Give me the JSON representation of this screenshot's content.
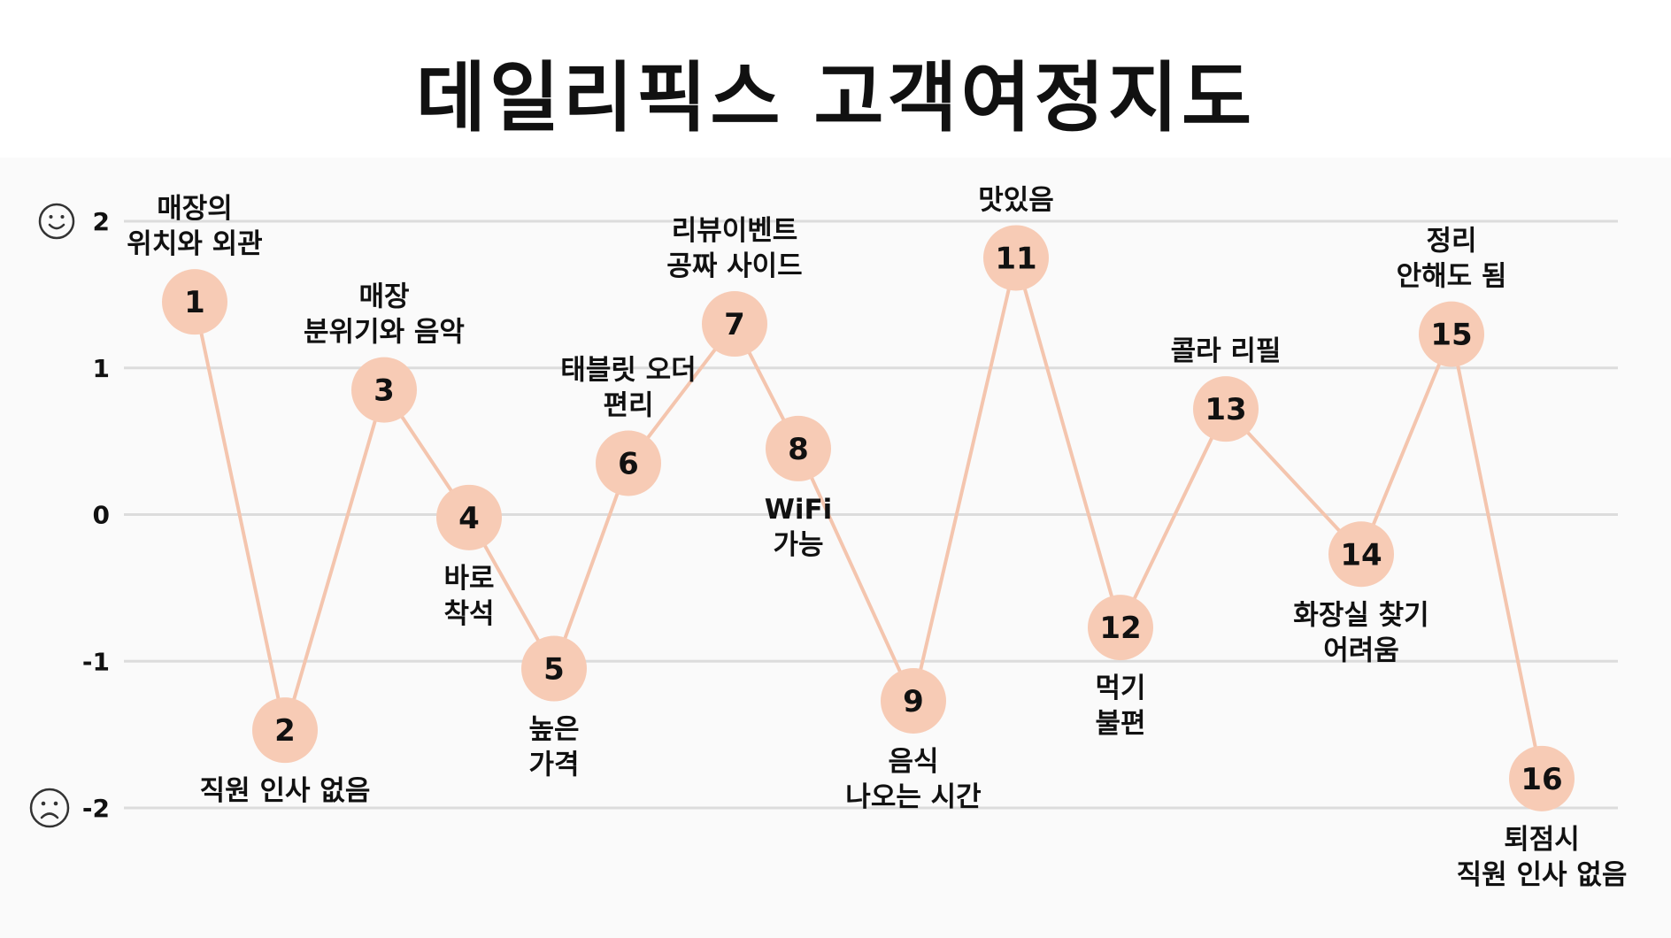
{
  "title": "데일리픽스 고객여정지도",
  "colors": {
    "marker": "#f7cbb5",
    "line": "#f4c5ae",
    "grid": "#dcdcdc",
    "background": "#fafafa"
  },
  "icons": {
    "top": "smiley-face-icon",
    "bottom": "sad-face-icon"
  },
  "chart_data": {
    "type": "line",
    "title": "데일리픽스 고객여정지도",
    "xlabel": "",
    "ylabel": "",
    "ylim": [
      -2,
      2
    ],
    "yticks": [
      2,
      1,
      0,
      -1,
      -2
    ],
    "ytick_labels": [
      "2",
      "1",
      "0",
      "-1",
      "-2"
    ],
    "grid": true,
    "points": [
      {
        "id": "1",
        "label": [
          "매장의",
          "위치와 외관"
        ],
        "value": 1.45,
        "label_pos": "above"
      },
      {
        "id": "2",
        "label": [
          "직원 인사 없음"
        ],
        "value": -1.47,
        "label_pos": "below"
      },
      {
        "id": "3",
        "label": [
          "매장",
          "분위기와 음악"
        ],
        "value": 0.85,
        "label_pos": "above"
      },
      {
        "id": "4",
        "label": [
          "바로",
          "착석"
        ],
        "value": -0.02,
        "label_pos": "below"
      },
      {
        "id": "5",
        "label": [
          "높은",
          "가격"
        ],
        "value": -1.05,
        "label_pos": "below"
      },
      {
        "id": "6",
        "label": [
          "태블릿 오더",
          "편리"
        ],
        "value": 0.35,
        "label_pos": "above"
      },
      {
        "id": "7",
        "label": [
          "리뷰이벤트",
          "공짜 사이드"
        ],
        "value": 1.3,
        "label_pos": "above"
      },
      {
        "id": "8",
        "label": [
          "WiFi",
          "가능"
        ],
        "value": 0.45,
        "label_pos": "below"
      },
      {
        "id": "9",
        "label": [
          "음식",
          "나오는 시간"
        ],
        "value": -1.27,
        "label_pos": "below"
      },
      {
        "id": "11",
        "label": [
          "맛있음"
        ],
        "value": 1.75,
        "label_pos": "above"
      },
      {
        "id": "12",
        "label": [
          "먹기",
          "불편"
        ],
        "value": -0.77,
        "label_pos": "below"
      },
      {
        "id": "13",
        "label": [
          "콜라 리필"
        ],
        "value": 0.72,
        "label_pos": "above"
      },
      {
        "id": "14",
        "label": [
          "화장실 찾기",
          "어려움"
        ],
        "value": -0.27,
        "label_pos": "below"
      },
      {
        "id": "15",
        "label": [
          "정리",
          "안해도 됨"
        ],
        "value": 1.23,
        "label_pos": "above"
      },
      {
        "id": "16",
        "label": [
          "퇴점시",
          "직원 인사 없음"
        ],
        "value": -1.8,
        "label_pos": "below"
      }
    ]
  }
}
